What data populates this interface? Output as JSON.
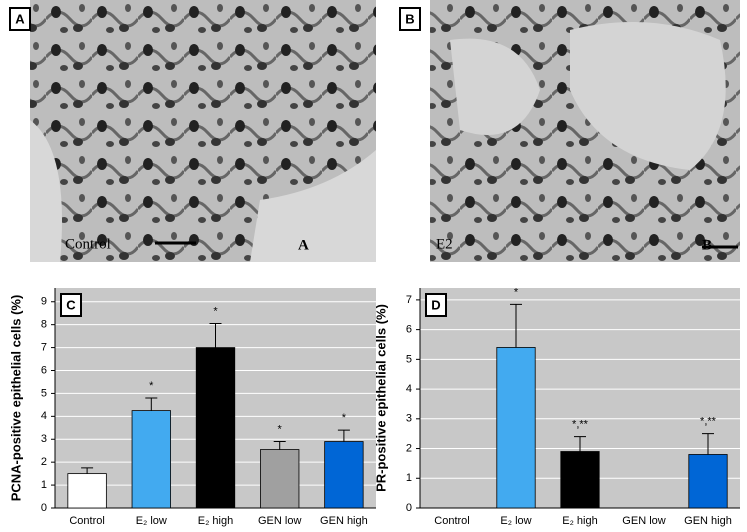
{
  "images": [
    {
      "panel": "A",
      "caption": "Control",
      "corner": "A"
    },
    {
      "panel": "B",
      "caption": "E2",
      "corner": "B"
    }
  ],
  "chart_data": [
    {
      "type": "bar",
      "panel": "C",
      "y_label": "PCNA-positive epithelial cells (%)",
      "categories": [
        "Control",
        "E₂ low",
        "E₂ high",
        "GEN low",
        "GEN high"
      ],
      "values": [
        1.5,
        4.25,
        7.0,
        2.55,
        2.9
      ],
      "errors": [
        0.25,
        0.55,
        1.05,
        0.35,
        0.5
      ],
      "annotations": [
        null,
        "*",
        "*",
        "*",
        "*"
      ],
      "colors": [
        "#ffffff",
        "#42aaf0",
        "#000000",
        "#a0a0a0",
        "#0066d6"
      ],
      "ylim": [
        0,
        9.6
      ],
      "yticks": [
        0,
        1,
        2,
        3,
        4,
        5,
        6,
        7,
        8,
        9
      ],
      "grid": true
    },
    {
      "type": "bar",
      "panel": "D",
      "y_label": "PR-positive epithelial cells (%)",
      "categories": [
        "Control",
        "E₂ low",
        "E₂ high",
        "GEN low",
        "GEN high"
      ],
      "values": [
        null,
        5.4,
        1.9,
        null,
        1.8
      ],
      "errors": [
        null,
        1.45,
        0.5,
        null,
        0.7
      ],
      "annotations": [
        null,
        "*",
        "*,**",
        null,
        "*,**"
      ],
      "colors": [
        "#ffffff",
        "#42aaf0",
        "#000000",
        "#a0a0a0",
        "#0066d6"
      ],
      "ylim": [
        0,
        7.4
      ],
      "yticks": [
        0,
        1,
        2,
        3,
        4,
        5,
        6,
        7
      ],
      "grid": true
    }
  ]
}
